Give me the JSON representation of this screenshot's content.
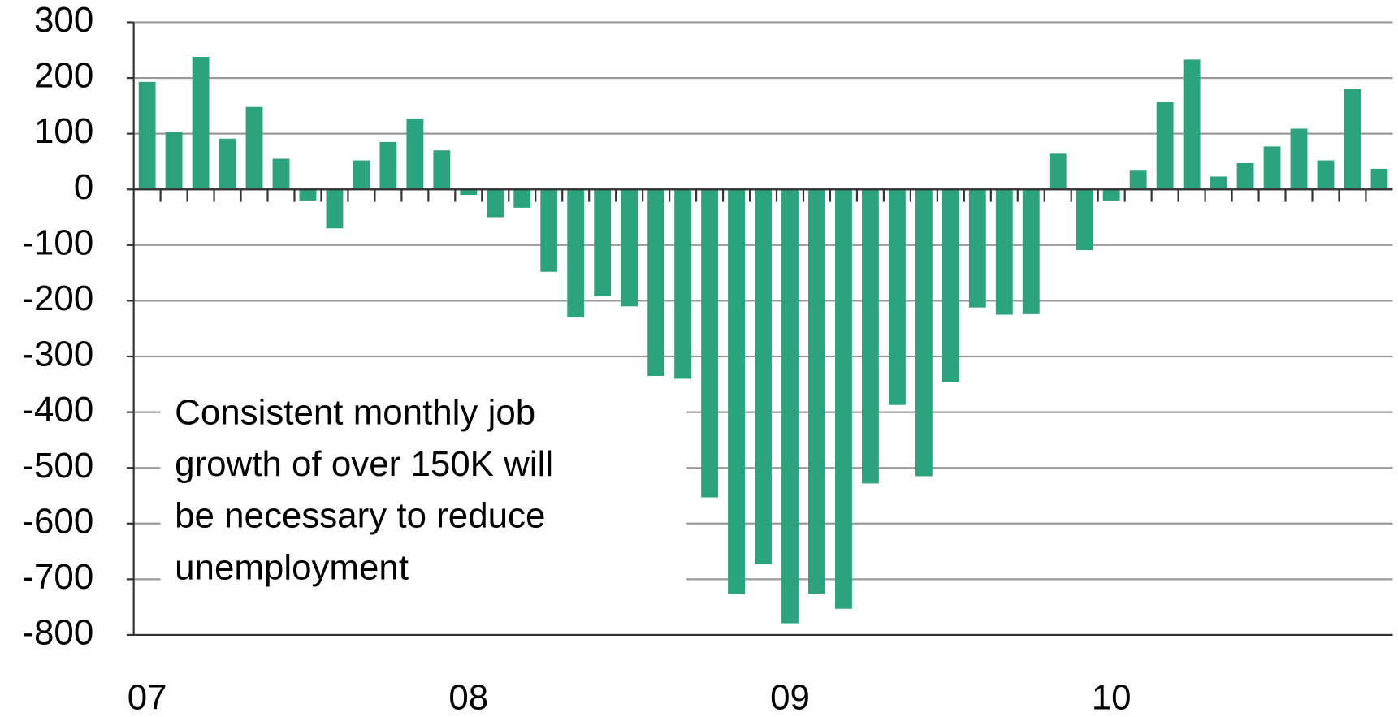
{
  "chart_data": {
    "type": "bar",
    "categories": [
      "07",
      null,
      null,
      null,
      null,
      null,
      null,
      null,
      null,
      null,
      null,
      null,
      "08",
      null,
      null,
      null,
      null,
      null,
      null,
      null,
      null,
      null,
      null,
      null,
      "09",
      null,
      null,
      null,
      null,
      null,
      null,
      null,
      null,
      null,
      null,
      null,
      "10",
      null,
      null,
      null,
      null,
      null,
      null,
      null,
      null,
      null,
      null
    ],
    "values": [
      193,
      103,
      238,
      91,
      148,
      55,
      -20,
      -70,
      52,
      85,
      127,
      70,
      -10,
      -50,
      -33,
      -148,
      -230,
      -192,
      -210,
      -335,
      -340,
      -553,
      -727,
      -673,
      -779,
      -726,
      -753,
      -528,
      -387,
      -515,
      -346,
      -212,
      -225,
      -224,
      64,
      -109,
      -20,
      35,
      157,
      233,
      23,
      47,
      77,
      109,
      52,
      180,
      37
    ],
    "color": "#2ca37f",
    "ylim": [
      -800,
      300
    ],
    "yticks": [
      -800,
      -700,
      -600,
      -500,
      -400,
      -300,
      -200,
      -100,
      0,
      100,
      200,
      300
    ],
    "grid": true,
    "annotation": [
      "Consistent monthly job",
      "growth of over 150K will",
      "be necessary to reduce",
      "unemployment"
    ]
  }
}
